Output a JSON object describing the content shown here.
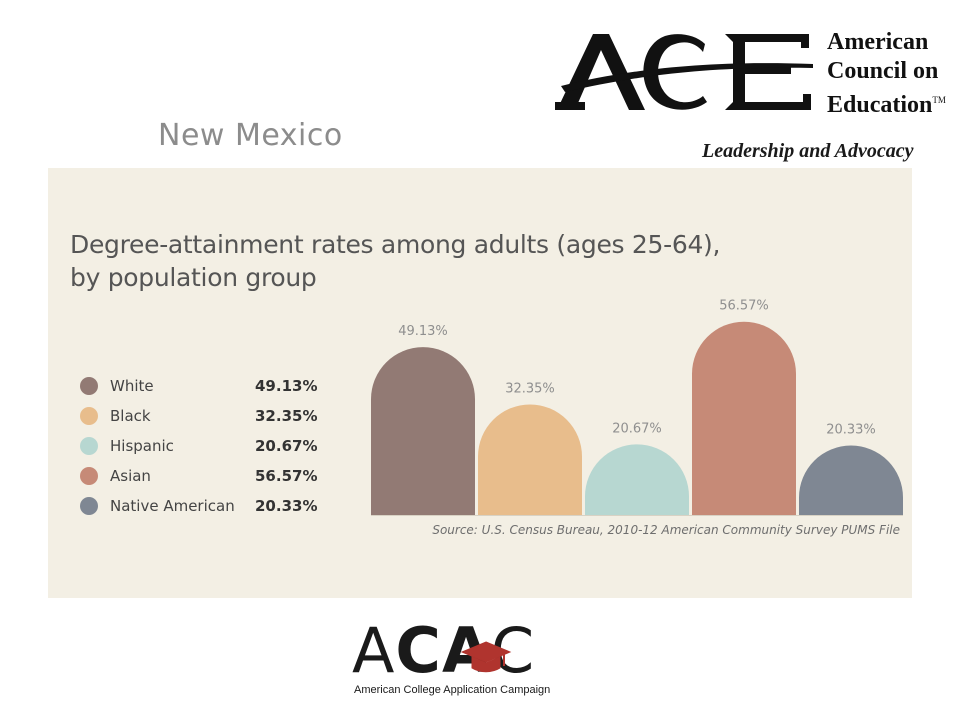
{
  "header": {
    "state": "New Mexico",
    "ace_logo": {
      "mark": "ACE",
      "org_lines": [
        "American",
        "Council on",
        "Education"
      ],
      "trademark": "TM",
      "tagline": "Leadership and Advocacy"
    }
  },
  "footer": {
    "acac_logo": {
      "mark_parts": [
        "A",
        "C",
        "A",
        "C"
      ],
      "tagline": "American College Application Campaign",
      "cap_color": "#b0342e"
    }
  },
  "chart_data": {
    "type": "bar",
    "title_lines": [
      "Degree-attainment rates among adults (ages 25-64),",
      "by population group"
    ],
    "categories": [
      "White",
      "Black",
      "Hispanic",
      "Asian",
      "Native American"
    ],
    "values": [
      49.13,
      32.35,
      20.67,
      56.57,
      20.33
    ],
    "value_labels": [
      "49.13%",
      "32.35%",
      "20.67%",
      "56.57%",
      "20.33%"
    ],
    "colors": [
      "#927a74",
      "#e8bd8c",
      "#b7d7d1",
      "#c68a77",
      "#7f8793"
    ],
    "ylim": [
      0,
      60
    ],
    "legend_position": "left",
    "grid": false,
    "source": "Source: U.S. Census Bureau, 2010-12 American Community Survey PUMS File"
  }
}
